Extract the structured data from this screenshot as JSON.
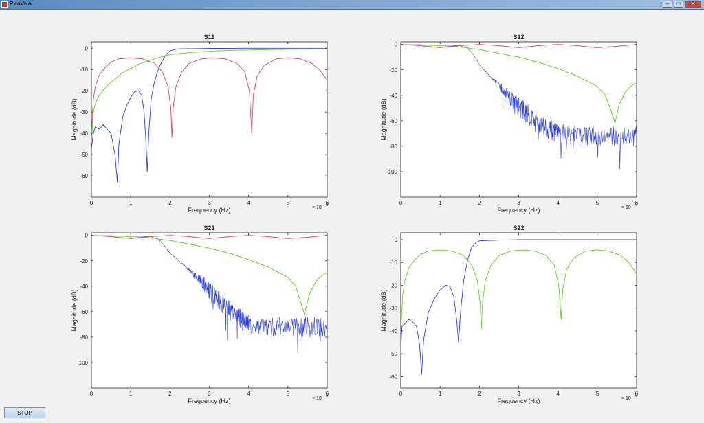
{
  "window": {
    "title": "PicoVNA",
    "min_icon": "minimize-icon",
    "max_icon": "maximize-icon",
    "close_icon": "close-icon"
  },
  "controls": {
    "stop_label": "STOP"
  },
  "colors": {
    "blue": "#2b3fd8",
    "green": "#5fd421",
    "red": "#e8445f",
    "axis": "#262626"
  },
  "chart_data": [
    {
      "type": "line",
      "title": "S11",
      "xlabel": "Frequency (Hz)",
      "ylabel": "Magnitude (dB)",
      "x_exponent": "× 10",
      "x_exponent_power": "9",
      "xlim": [
        0,
        6
      ],
      "ylim": [
        -70,
        3
      ],
      "xticks": [
        0,
        1,
        2,
        3,
        4,
        5,
        6
      ],
      "yticks": [
        0,
        -10,
        -20,
        -30,
        -40,
        -50,
        -60
      ],
      "series": [
        {
          "color": "#2b3fd8",
          "noisy": false,
          "points": [
            [
              0,
              -47
            ],
            [
              0.05,
              -40
            ],
            [
              0.1,
              -37
            ],
            [
              0.2,
              -38
            ],
            [
              0.3,
              -36
            ],
            [
              0.4,
              -38
            ],
            [
              0.5,
              -40
            ],
            [
              0.6,
              -50
            ],
            [
              0.66,
              -63
            ],
            [
              0.7,
              -45
            ],
            [
              0.8,
              -32
            ],
            [
              0.9,
              -27
            ],
            [
              1.0,
              -23
            ],
            [
              1.1,
              -20.5
            ],
            [
              1.2,
              -20
            ],
            [
              1.28,
              -22
            ],
            [
              1.34,
              -30
            ],
            [
              1.39,
              -45
            ],
            [
              1.42,
              -58
            ],
            [
              1.46,
              -40
            ],
            [
              1.52,
              -24
            ],
            [
              1.6,
              -16
            ],
            [
              1.7,
              -10
            ],
            [
              1.8,
              -6
            ],
            [
              1.9,
              -3
            ],
            [
              2.0,
              -1.2
            ],
            [
              2.2,
              -0.3
            ],
            [
              3.0,
              -0.1
            ],
            [
              4.0,
              0
            ],
            [
              5.0,
              0
            ],
            [
              6.0,
              0
            ]
          ]
        },
        {
          "color": "#5fd421",
          "noisy": false,
          "points": [
            [
              0,
              -45
            ],
            [
              0.05,
              -30
            ],
            [
              0.1,
              -26
            ],
            [
              0.2,
              -22
            ],
            [
              0.4,
              -17.5
            ],
            [
              0.6,
              -14.5
            ],
            [
              0.8,
              -11.5
            ],
            [
              1.0,
              -9.5
            ],
            [
              1.2,
              -7.5
            ],
            [
              1.5,
              -5.5
            ],
            [
              1.8,
              -4
            ],
            [
              2.0,
              -3
            ],
            [
              2.5,
              -2
            ],
            [
              3.0,
              -1.4
            ],
            [
              3.5,
              -1
            ],
            [
              4.0,
              -0.8
            ],
            [
              5.0,
              -0.5
            ],
            [
              6.0,
              -0.4
            ]
          ]
        },
        {
          "color": "#e8445f",
          "noisy": false,
          "points": [
            [
              0,
              -40
            ],
            [
              0.05,
              -24
            ],
            [
              0.1,
              -18
            ],
            [
              0.2,
              -12.5
            ],
            [
              0.35,
              -9
            ],
            [
              0.5,
              -6.5
            ],
            [
              0.7,
              -5
            ],
            [
              1.0,
              -4.5
            ],
            [
              1.3,
              -5
            ],
            [
              1.6,
              -7
            ],
            [
              1.8,
              -11
            ],
            [
              1.95,
              -18
            ],
            [
              2.02,
              -28
            ],
            [
              2.05,
              -42
            ],
            [
              2.08,
              -28
            ],
            [
              2.15,
              -18
            ],
            [
              2.3,
              -11
            ],
            [
              2.5,
              -7
            ],
            [
              2.8,
              -5
            ],
            [
              3.1,
              -4.5
            ],
            [
              3.4,
              -5
            ],
            [
              3.7,
              -7
            ],
            [
              3.9,
              -11
            ],
            [
              4.02,
              -20
            ],
            [
              4.08,
              -40
            ],
            [
              4.12,
              -22
            ],
            [
              4.22,
              -13
            ],
            [
              4.4,
              -8
            ],
            [
              4.7,
              -5
            ],
            [
              5.0,
              -4.5
            ],
            [
              5.3,
              -5
            ],
            [
              5.6,
              -7
            ],
            [
              5.8,
              -10
            ],
            [
              6.0,
              -15
            ]
          ]
        }
      ]
    },
    {
      "type": "line",
      "title": "S12",
      "xlabel": "Frequency (Hz)",
      "ylabel": "Magnitude (dB)",
      "x_exponent": "× 10",
      "x_exponent_power": "9",
      "xlim": [
        0,
        6
      ],
      "ylim": [
        -120,
        2
      ],
      "xticks": [
        0,
        1,
        2,
        3,
        4,
        5,
        6
      ],
      "yticks": [
        0,
        -20,
        -40,
        -60,
        -80,
        -100
      ],
      "series": [
        {
          "color": "#2b3fd8",
          "noisy": true,
          "noise_from": 2.9,
          "noise_amp": 8,
          "points": [
            [
              0,
              0
            ],
            [
              1.0,
              -0.5
            ],
            [
              1.5,
              -1
            ],
            [
              1.7,
              -3
            ],
            [
              1.85,
              -8
            ],
            [
              2.0,
              -16
            ],
            [
              2.3,
              -26
            ],
            [
              2.6,
              -36
            ],
            [
              2.9,
              -46
            ],
            [
              3.2,
              -54
            ],
            [
              3.5,
              -62
            ],
            [
              3.8,
              -67
            ],
            [
              4.0,
              -70
            ],
            [
              4.5,
              -72
            ],
            [
              5.0,
              -72
            ],
            [
              5.5,
              -72
            ],
            [
              6.0,
              -72
            ]
          ]
        },
        {
          "color": "#5fd421",
          "noisy": false,
          "points": [
            [
              0,
              0
            ],
            [
              0.5,
              -0.5
            ],
            [
              1.0,
              -1
            ],
            [
              1.5,
              -2
            ],
            [
              2.0,
              -4
            ],
            [
              2.5,
              -7
            ],
            [
              3.0,
              -10
            ],
            [
              3.5,
              -14
            ],
            [
              4.0,
              -19
            ],
            [
              4.5,
              -25
            ],
            [
              5.0,
              -33
            ],
            [
              5.2,
              -40
            ],
            [
              5.35,
              -52
            ],
            [
              5.45,
              -62
            ],
            [
              5.55,
              -48
            ],
            [
              5.7,
              -38
            ],
            [
              5.85,
              -33
            ],
            [
              6.0,
              -30
            ]
          ]
        },
        {
          "color": "#e8445f",
          "noisy": false,
          "points": [
            [
              0,
              0
            ],
            [
              0.5,
              -1
            ],
            [
              1.0,
              -2.5
            ],
            [
              1.5,
              -1
            ],
            [
              2.0,
              0
            ],
            [
              2.5,
              -1
            ],
            [
              3.0,
              -2.5
            ],
            [
              3.5,
              -1
            ],
            [
              4.0,
              0
            ],
            [
              4.5,
              -1
            ],
            [
              5.0,
              -2.5
            ],
            [
              5.5,
              -1.5
            ],
            [
              6.0,
              0
            ]
          ]
        }
      ]
    },
    {
      "type": "line",
      "title": "S21",
      "xlabel": "Frequency (Hz)",
      "ylabel": "Magnitude (dB)",
      "x_exponent": "× 10",
      "x_exponent_power": "9",
      "xlim": [
        0,
        6
      ],
      "ylim": [
        -120,
        2
      ],
      "xticks": [
        0,
        1,
        2,
        3,
        4,
        5,
        6
      ],
      "yticks": [
        0,
        -20,
        -40,
        -60,
        -80,
        -100
      ],
      "series": [
        {
          "color": "#2b3fd8",
          "noisy": true,
          "noise_from": 3.0,
          "noise_amp": 8,
          "points": [
            [
              0,
              0
            ],
            [
              1.0,
              -0.5
            ],
            [
              1.5,
              -1
            ],
            [
              1.7,
              -3
            ],
            [
              1.85,
              -8
            ],
            [
              2.0,
              -14
            ],
            [
              2.3,
              -22
            ],
            [
              2.6,
              -30
            ],
            [
              2.9,
              -40
            ],
            [
              3.2,
              -50
            ],
            [
              3.5,
              -58
            ],
            [
              3.8,
              -66
            ],
            [
              4.0,
              -70
            ],
            [
              4.5,
              -72
            ],
            [
              5.0,
              -72
            ],
            [
              5.5,
              -72
            ],
            [
              6.0,
              -73
            ]
          ]
        },
        {
          "color": "#5fd421",
          "noisy": false,
          "points": [
            [
              0,
              0
            ],
            [
              0.5,
              -0.5
            ],
            [
              1.0,
              -1
            ],
            [
              1.5,
              -2
            ],
            [
              2.0,
              -4
            ],
            [
              2.5,
              -7
            ],
            [
              3.0,
              -10
            ],
            [
              3.5,
              -14
            ],
            [
              4.0,
              -19
            ],
            [
              4.5,
              -25
            ],
            [
              5.0,
              -33
            ],
            [
              5.2,
              -40
            ],
            [
              5.3,
              -50
            ],
            [
              5.42,
              -62
            ],
            [
              5.55,
              -46
            ],
            [
              5.7,
              -37
            ],
            [
              5.85,
              -32
            ],
            [
              6.0,
              -29
            ]
          ]
        },
        {
          "color": "#e8445f",
          "noisy": false,
          "points": [
            [
              0,
              0
            ],
            [
              0.5,
              -1
            ],
            [
              1.0,
              -2.5
            ],
            [
              1.5,
              -1
            ],
            [
              2.0,
              0
            ],
            [
              2.5,
              -1
            ],
            [
              3.0,
              -2.5
            ],
            [
              3.5,
              -1
            ],
            [
              4.0,
              0
            ],
            [
              4.5,
              -1
            ],
            [
              5.0,
              -2.5
            ],
            [
              5.5,
              -1.5
            ],
            [
              6.0,
              0
            ]
          ]
        }
      ]
    },
    {
      "type": "line",
      "title": "S22",
      "xlabel": "Frequency (Hz)",
      "ylabel": "Magnitude (dB)",
      "x_exponent": "× 10",
      "x_exponent_power": "9",
      "xlim": [
        0,
        6
      ],
      "ylim": [
        -65,
        3
      ],
      "xticks": [
        0,
        1,
        2,
        3,
        4,
        5,
        6
      ],
      "yticks": [
        0,
        -10,
        -20,
        -30,
        -40,
        -50,
        -60
      ],
      "series": [
        {
          "color": "#2b3fd8",
          "noisy": false,
          "points": [
            [
              0,
              -48
            ],
            [
              0.03,
              -38
            ],
            [
              0.1,
              -37
            ],
            [
              0.2,
              -35
            ],
            [
              0.3,
              -36
            ],
            [
              0.4,
              -38
            ],
            [
              0.48,
              -46
            ],
            [
              0.53,
              -59
            ],
            [
              0.58,
              -44
            ],
            [
              0.7,
              -32
            ],
            [
              0.85,
              -26
            ],
            [
              1.0,
              -22
            ],
            [
              1.15,
              -20
            ],
            [
              1.25,
              -20.5
            ],
            [
              1.35,
              -25
            ],
            [
              1.42,
              -35
            ],
            [
              1.47,
              -45
            ],
            [
              1.52,
              -32
            ],
            [
              1.6,
              -18
            ],
            [
              1.7,
              -9
            ],
            [
              1.8,
              -3.5
            ],
            [
              1.9,
              -1.5
            ],
            [
              2.0,
              -0.5
            ],
            [
              2.5,
              -0.2
            ],
            [
              3.0,
              0
            ],
            [
              4.0,
              0
            ],
            [
              5.0,
              0
            ],
            [
              6.0,
              0
            ]
          ]
        },
        {
          "color": "#5fd421",
          "noisy": false,
          "points": [
            [
              0,
              -40
            ],
            [
              0.05,
              -24
            ],
            [
              0.1,
              -18
            ],
            [
              0.2,
              -12.5
            ],
            [
              0.35,
              -9
            ],
            [
              0.5,
              -6.5
            ],
            [
              0.7,
              -5
            ],
            [
              1.0,
              -4.5
            ],
            [
              1.3,
              -5
            ],
            [
              1.6,
              -7
            ],
            [
              1.8,
              -11
            ],
            [
              1.95,
              -18
            ],
            [
              2.02,
              -28
            ],
            [
              2.05,
              -39
            ],
            [
              2.08,
              -28
            ],
            [
              2.15,
              -18
            ],
            [
              2.3,
              -11
            ],
            [
              2.5,
              -7
            ],
            [
              2.8,
              -5
            ],
            [
              3.1,
              -4.5
            ],
            [
              3.4,
              -5
            ],
            [
              3.7,
              -7
            ],
            [
              3.9,
              -11
            ],
            [
              4.02,
              -20
            ],
            [
              4.08,
              -35
            ],
            [
              4.12,
              -22
            ],
            [
              4.22,
              -13
            ],
            [
              4.4,
              -8
            ],
            [
              4.7,
              -5
            ],
            [
              5.0,
              -4.5
            ],
            [
              5.3,
              -5
            ],
            [
              5.6,
              -7
            ],
            [
              5.8,
              -10
            ],
            [
              6.0,
              -15
            ]
          ]
        }
      ]
    }
  ]
}
